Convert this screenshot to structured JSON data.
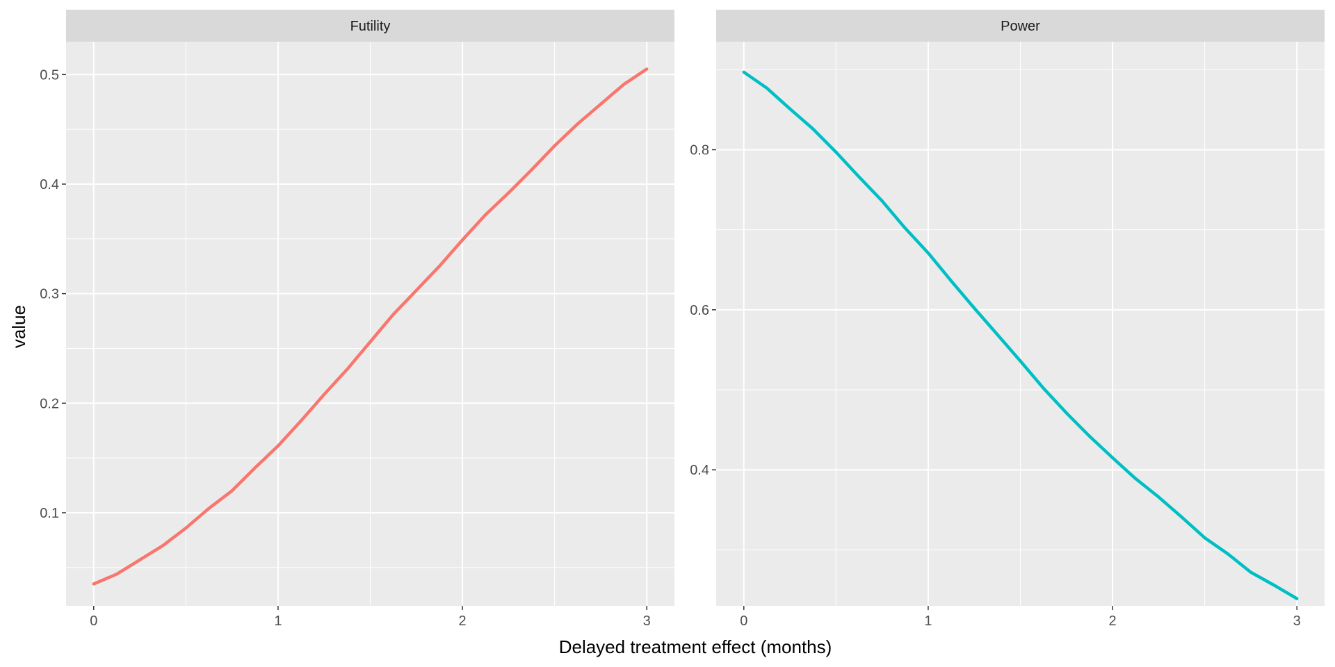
{
  "chart_data": {
    "type": "line",
    "xlabel": "Delayed treatment effect (months)",
    "ylabel": "value",
    "facets": [
      {
        "name": "Futility",
        "color": "#F8766D",
        "xlim": [
          -0.15,
          3.15
        ],
        "ylim": [
          0.015,
          0.53
        ],
        "x_ticks": [
          0,
          1,
          2,
          3
        ],
        "y_ticks": [
          0.1,
          0.2,
          0.3,
          0.4,
          0.5
        ],
        "y_tick_labels": [
          "0.1",
          "0.2",
          "0.3",
          "0.4",
          "0.5"
        ],
        "x": [
          0,
          0.125,
          0.25,
          0.375,
          0.5,
          0.625,
          0.75,
          0.875,
          1,
          1.125,
          1.25,
          1.375,
          1.5,
          1.625,
          1.75,
          1.875,
          2,
          2.125,
          2.25,
          2.375,
          2.5,
          2.625,
          2.75,
          2.875,
          3
        ],
        "values": [
          0.035,
          0.044,
          0.057,
          0.07,
          0.086,
          0.104,
          0.12,
          0.141,
          0.161,
          0.184,
          0.208,
          0.231,
          0.256,
          0.281,
          0.303,
          0.325,
          0.349,
          0.372,
          0.392,
          0.413,
          0.435,
          0.455,
          0.473,
          0.491,
          0.505
        ]
      },
      {
        "name": "Power",
        "color": "#00BFC4",
        "xlim": [
          -0.15,
          3.15
        ],
        "ylim": [
          0.23,
          0.935
        ],
        "x_ticks": [
          0,
          1,
          2,
          3
        ],
        "y_ticks": [
          0.4,
          0.6,
          0.8
        ],
        "y_tick_labels": [
          "0.4",
          "0.6",
          "0.8"
        ],
        "x": [
          0,
          0.125,
          0.25,
          0.375,
          0.5,
          0.625,
          0.75,
          0.875,
          1,
          1.125,
          1.25,
          1.375,
          1.5,
          1.625,
          1.75,
          1.875,
          2,
          2.125,
          2.25,
          2.375,
          2.5,
          2.625,
          2.75,
          2.875,
          3
        ],
        "values": [
          0.897,
          0.877,
          0.851,
          0.826,
          0.797,
          0.766,
          0.736,
          0.702,
          0.671,
          0.636,
          0.602,
          0.569,
          0.536,
          0.502,
          0.471,
          0.442,
          0.415,
          0.389,
          0.366,
          0.341,
          0.315,
          0.295,
          0.272,
          0.256,
          0.239
        ]
      }
    ]
  }
}
